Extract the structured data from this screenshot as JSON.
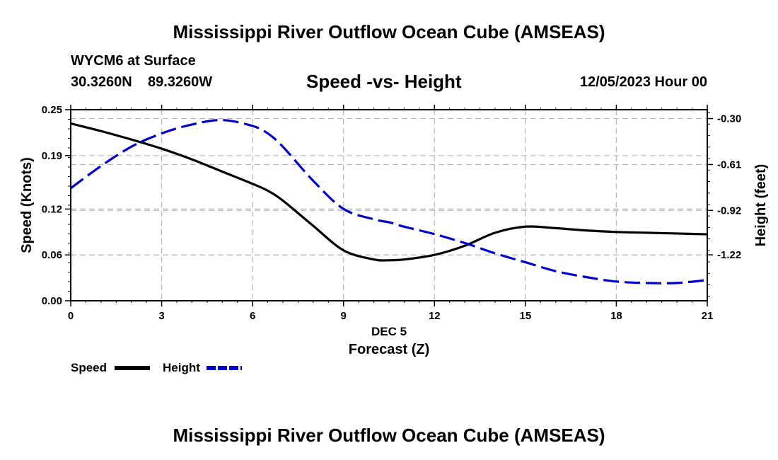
{
  "page": {
    "title": "Mississippi River Outflow Ocean Cube (AMSEAS)",
    "station_line": "WYCM6 at Surface",
    "coords_lat": "30.3260N",
    "coords_lon": "89.3260W",
    "chart_title": "Speed -vs- Height",
    "date_time": "12/05/2023 Hour 00",
    "footer_title": "Mississippi River Outflow Ocean Cube (AMSEAS)"
  },
  "chart_data": {
    "type": "line",
    "title": "Speed -vs- Height",
    "xlabel": "Forecast (Z)",
    "x_sublabel": "DEC 5",
    "x_ticks": [
      "0",
      "3",
      "6",
      "9",
      "12",
      "15",
      "18",
      "21"
    ],
    "xlim": [
      0,
      21
    ],
    "y_left": {
      "label": "Speed (Knots)",
      "ticks": [
        "0.25",
        "0.19",
        "0.12",
        "0.06",
        "0.00"
      ],
      "ylim": [
        0,
        0.25
      ]
    },
    "y_right": {
      "label": "Height (feet)",
      "ticks": [
        "-0.30",
        "-0.61",
        "-0.92",
        "-1.22"
      ],
      "ylim": [
        -1.53,
        -0.24
      ]
    },
    "grid": true,
    "legend_position": "bottom-left",
    "x": [
      0,
      1,
      2,
      3,
      4,
      5,
      6,
      6.5,
      7,
      8,
      9,
      10,
      10.5,
      11,
      12,
      13,
      14,
      15,
      16,
      17,
      18,
      19,
      20,
      21
    ],
    "series": [
      {
        "name": "Speed",
        "axis": "left",
        "color": "#000000",
        "style": "solid",
        "values": [
          0.232,
          0.222,
          0.211,
          0.199,
          0.185,
          0.169,
          0.153,
          0.144,
          0.131,
          0.098,
          0.066,
          0.054,
          0.053,
          0.054,
          0.06,
          0.072,
          0.089,
          0.097,
          0.095,
          0.092,
          0.09,
          0.089,
          0.088,
          0.087
        ]
      },
      {
        "name": "Height",
        "axis": "right",
        "color": "#0000cc",
        "style": "dashed",
        "values": [
          -0.77,
          -0.62,
          -0.49,
          -0.4,
          -0.34,
          -0.31,
          -0.35,
          -0.4,
          -0.49,
          -0.72,
          -0.91,
          -0.98,
          -1.0,
          -1.03,
          -1.08,
          -1.14,
          -1.21,
          -1.27,
          -1.33,
          -1.37,
          -1.4,
          -1.41,
          -1.41,
          -1.39
        ]
      }
    ]
  }
}
